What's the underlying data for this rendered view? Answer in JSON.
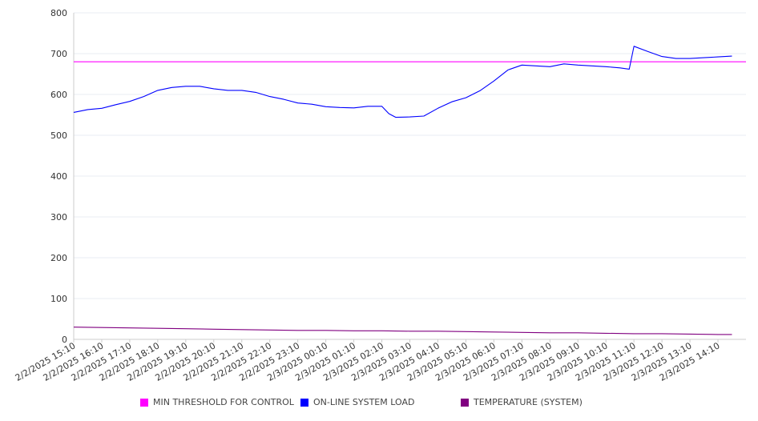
{
  "chart_data": {
    "type": "line",
    "title": "",
    "xlabel": "",
    "ylabel": "",
    "ylim": [
      0,
      800
    ],
    "yticks": [
      0,
      100,
      200,
      300,
      400,
      500,
      600,
      700,
      800
    ],
    "x_tick_labels": [
      "2/2/2025 15:10",
      "2/2/2025 16:10",
      "2/2/2025 17:10",
      "2/2/2025 18:10",
      "2/2/2025 19:10",
      "2/2/2025 20:10",
      "2/2/2025 21:10",
      "2/2/2025 22:10",
      "2/2/2025 23:10",
      "2/3/2025 00:10",
      "2/3/2025 01:10",
      "2/3/2025 02:10",
      "2/3/2025 03:10",
      "2/3/2025 04:10",
      "2/3/2025 05:10",
      "2/3/2025 06:10",
      "2/3/2025 07:10",
      "2/3/2025 08:10",
      "2/3/2025 09:10",
      "2/3/2025 10:10",
      "2/3/2025 11:10",
      "2/3/2025 12:10",
      "2/3/2025 13:10",
      "2/3/2025 14:10"
    ],
    "grid": true,
    "legend_position": "bottom",
    "series": [
      {
        "name": "MIN THRESHOLD FOR CONTROL",
        "color": "#ff00ff",
        "x": [
          "2/2/2025 15:10",
          "2/3/2025 14:10"
        ],
        "values": [
          680,
          680
        ]
      },
      {
        "name": "ON-LINE SYSTEM LOAD",
        "color": "#0000ff",
        "x": [
          "2/2/2025 15:10",
          "2/2/2025 15:40",
          "2/2/2025 16:10",
          "2/2/2025 16:40",
          "2/2/2025 17:10",
          "2/2/2025 17:40",
          "2/2/2025 18:10",
          "2/2/2025 18:40",
          "2/2/2025 19:10",
          "2/2/2025 19:40",
          "2/2/2025 20:10",
          "2/2/2025 20:40",
          "2/2/2025 21:10",
          "2/2/2025 21:40",
          "2/2/2025 22:10",
          "2/2/2025 22:40",
          "2/2/2025 23:10",
          "2/2/2025 23:40",
          "2/3/2025 00:10",
          "2/3/2025 00:40",
          "2/3/2025 01:10",
          "2/3/2025 01:40",
          "2/3/2025 02:10",
          "2/3/2025 02:25",
          "2/3/2025 02:40",
          "2/3/2025 03:10",
          "2/3/2025 03:40",
          "2/3/2025 04:10",
          "2/3/2025 04:40",
          "2/3/2025 05:10",
          "2/3/2025 05:40",
          "2/3/2025 06:10",
          "2/3/2025 06:40",
          "2/3/2025 07:10",
          "2/3/2025 07:40",
          "2/3/2025 08:10",
          "2/3/2025 08:40",
          "2/3/2025 09:10",
          "2/3/2025 09:40",
          "2/3/2025 10:10",
          "2/3/2025 10:40",
          "2/3/2025 11:00",
          "2/3/2025 11:10",
          "2/3/2025 11:40",
          "2/3/2025 12:10",
          "2/3/2025 12:40",
          "2/3/2025 13:10",
          "2/3/2025 13:40",
          "2/3/2025 14:10",
          "2/3/2025 14:40"
        ],
        "values": [
          556,
          563,
          566,
          575,
          583,
          595,
          610,
          617,
          620,
          620,
          614,
          610,
          610,
          605,
          595,
          588,
          579,
          576,
          570,
          568,
          567,
          571,
          571,
          553,
          544,
          545,
          547,
          566,
          582,
          592,
          609,
          633,
          660,
          672,
          670,
          668,
          675,
          672,
          670,
          668,
          665,
          662,
          718,
          705,
          693,
          688,
          688,
          690,
          692,
          694
        ]
      },
      {
        "name": "TEMPERATURE (SYSTEM)",
        "color": "#800080",
        "x": [
          "2/2/2025 15:10",
          "2/2/2025 16:10",
          "2/2/2025 17:10",
          "2/2/2025 18:10",
          "2/2/2025 19:10",
          "2/2/2025 20:10",
          "2/2/2025 21:10",
          "2/2/2025 22:10",
          "2/2/2025 23:10",
          "2/3/2025 00:10",
          "2/3/2025 01:10",
          "2/3/2025 02:10",
          "2/3/2025 03:10",
          "2/3/2025 04:10",
          "2/3/2025 05:10",
          "2/3/2025 06:10",
          "2/3/2025 07:10",
          "2/3/2025 08:10",
          "2/3/2025 09:10",
          "2/3/2025 10:10",
          "2/3/2025 11:10",
          "2/3/2025 12:10",
          "2/3/2025 13:10",
          "2/3/2025 14:10",
          "2/3/2025 14:40"
        ],
        "values": [
          30,
          29,
          28,
          27,
          26,
          25,
          24,
          23,
          22,
          22,
          21,
          21,
          20,
          20,
          19,
          18,
          17,
          16,
          16,
          15,
          14,
          14,
          13,
          12,
          12
        ]
      }
    ]
  }
}
